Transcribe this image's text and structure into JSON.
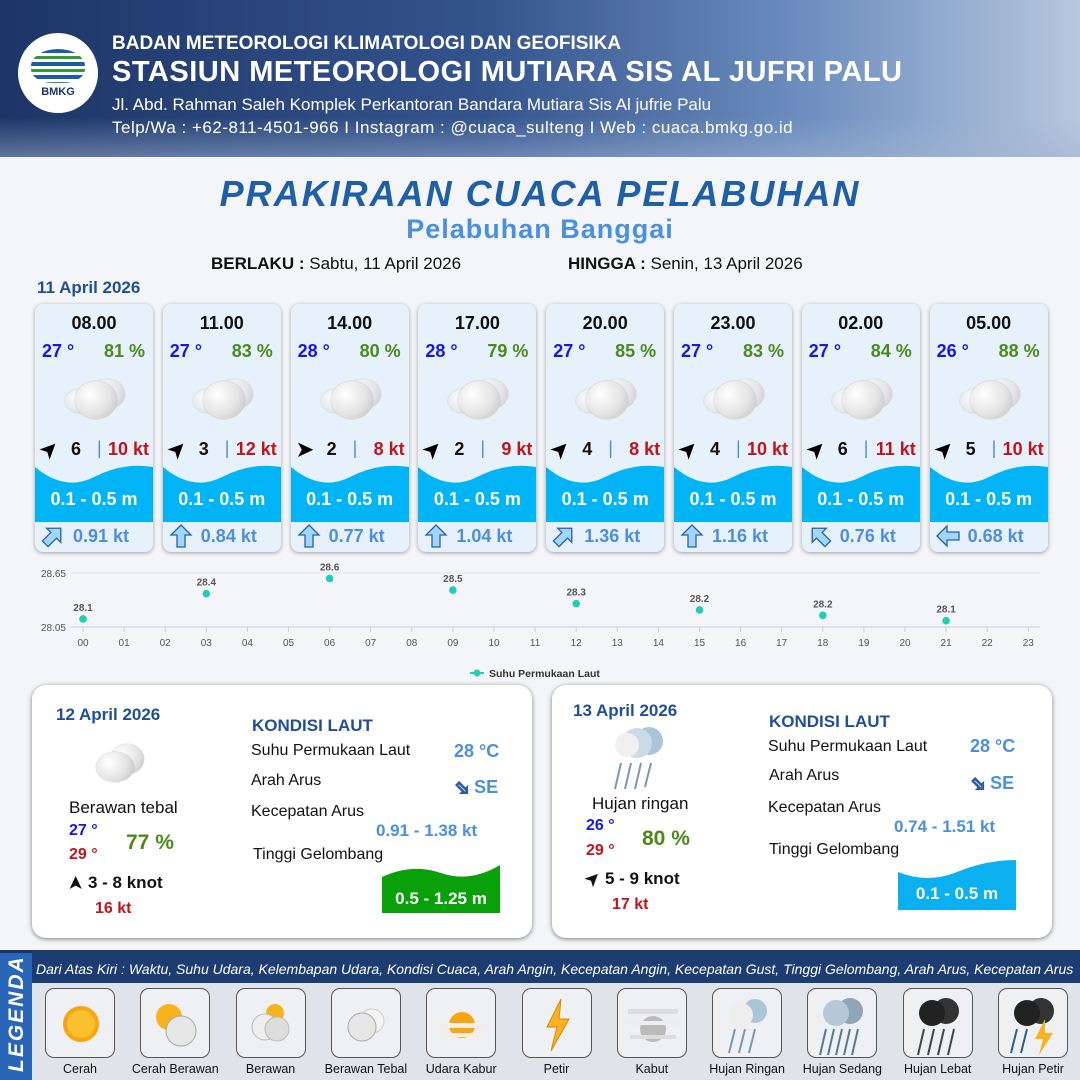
{
  "header": {
    "org": "BADAN METEOROLOGI KLIMATOLOGI DAN GEOFISIKA",
    "station": "STASIUN METEOROLOGI MUTIARA SIS AL JUFRI PALU",
    "address": "Jl. Abd. Rahman Saleh Komplek Perkantoran Bandara Mutiara Sis Al jufrie Palu",
    "contact": "Telp/Wa : +62-811-4501-966  I  Instagram : @cuaca_sulteng  I  Web : cuaca.bmkg.go.id",
    "logo_text": "BMKG"
  },
  "title": "PRAKIRAAN CUACA PELABUHAN",
  "subtitle": "Pelabuhan Banggai",
  "validity": {
    "from_label": "BERLAKU :",
    "from": "Sabtu, 11 April 2026",
    "to_label": "HINGGA :",
    "to": "Senin, 13 April 2026"
  },
  "day1": {
    "date": "11 April 2026",
    "cards": [
      {
        "time": "08.00",
        "temp": "27 °",
        "hum": "81 %",
        "cond": "Berawan Tebal",
        "wind_dir": "NE",
        "wind_rot": -45,
        "wind": "6",
        "gust": "10 kt",
        "wave": "0.1 - 0.5 m",
        "cur_rot": 45,
        "cur": "0.91 kt"
      },
      {
        "time": "11.00",
        "temp": "27 °",
        "hum": "83 %",
        "cond": "Berawan Tebal",
        "wind_dir": "NE",
        "wind_rot": -45,
        "wind": "3",
        "gust": "12 kt",
        "wave": "0.1 - 0.5 m",
        "cur_rot": 0,
        "cur": "0.84 kt"
      },
      {
        "time": "14.00",
        "temp": "28 °",
        "hum": "80 %",
        "cond": "Berawan Tebal",
        "wind_dir": "E",
        "wind_rot": 0,
        "wind": "2",
        "gust": "8 kt",
        "wave": "0.1 - 0.5 m",
        "cur_rot": 0,
        "cur": "0.77 kt"
      },
      {
        "time": "17.00",
        "temp": "28 °",
        "hum": "79 %",
        "cond": "Berawan Tebal",
        "wind_dir": "NE",
        "wind_rot": -45,
        "wind": "2",
        "gust": "9 kt",
        "wave": "0.1 - 0.5 m",
        "cur_rot": 0,
        "cur": "1.04 kt"
      },
      {
        "time": "20.00",
        "temp": "27 °",
        "hum": "85 %",
        "cond": "Berawan Tebal",
        "wind_dir": "NE",
        "wind_rot": -45,
        "wind": "4",
        "gust": "8 kt",
        "wave": "0.1 - 0.5 m",
        "cur_rot": 45,
        "cur": "1.36 kt"
      },
      {
        "time": "23.00",
        "temp": "27 °",
        "hum": "83 %",
        "cond": "Berawan Tebal",
        "wind_dir": "NE",
        "wind_rot": -45,
        "wind": "4",
        "gust": "10 kt",
        "wave": "0.1 - 0.5 m",
        "cur_rot": 0,
        "cur": "1.16 kt"
      },
      {
        "time": "02.00",
        "temp": "27 °",
        "hum": "84 %",
        "cond": "Berawan Tebal",
        "wind_dir": "NE",
        "wind_rot": -45,
        "wind": "6",
        "gust": "11 kt",
        "wave": "0.1 - 0.5 m",
        "cur_rot": -45,
        "cur": "0.76 kt"
      },
      {
        "time": "05.00",
        "temp": "26 °",
        "hum": "88 %",
        "cond": "Berawan Tebal",
        "wind_dir": "NE",
        "wind_rot": -45,
        "wind": "5",
        "gust": "10 kt",
        "wave": "0.1 - 0.5 m",
        "cur_rot": -90,
        "cur": "0.68 kt"
      }
    ]
  },
  "chart_data": {
    "type": "scatter",
    "x_ticks": [
      "00",
      "01",
      "02",
      "03",
      "04",
      "05",
      "06",
      "07",
      "08",
      "09",
      "10",
      "11",
      "12",
      "13",
      "14",
      "15",
      "16",
      "17",
      "18",
      "19",
      "20",
      "21",
      "22",
      "23"
    ],
    "y_ticks": [
      "28.05",
      "28.65"
    ],
    "ylim": [
      28.05,
      28.65
    ],
    "series": [
      {
        "name": "Suhu Permukaan Laut",
        "color": "#1ccfb5",
        "x": [
          "00",
          "03",
          "06",
          "09",
          "12",
          "15",
          "18",
          "21"
        ],
        "values": [
          28.14,
          28.42,
          28.59,
          28.46,
          28.31,
          28.24,
          28.18,
          28.12
        ],
        "labels": [
          "28.1",
          "28.4",
          "28.6",
          "28.5",
          "28.3",
          "28.2",
          "28.2",
          "28.1"
        ]
      }
    ],
    "legend": "bottom",
    "grid": "horizontal"
  },
  "day2": {
    "date": "12 April 2026",
    "cond": "Berawan tebal",
    "temp_min": "27 °",
    "temp_max": "29 °",
    "hum": "77 %",
    "wind": "3  - 8 knot",
    "gust": "16 kt",
    "sea_title": "KONDISI LAUT",
    "sst_label": "Suhu Permukaan Laut",
    "sst": "28 °C",
    "dir_label": "Arah Arus",
    "dir": "SE",
    "speed_label": "Kecepatan Arus",
    "speed": "0.91  - 1.38 kt",
    "wave_label": "Tinggi Gelombang",
    "wave": "0.5 - 1.25 m",
    "wave_color": "#0aa00a"
  },
  "day3": {
    "date": "13 April 2026",
    "cond": "Hujan ringan",
    "temp_min": "26 °",
    "temp_max": "29 °",
    "hum": "80 %",
    "wind": "5  - 9 knot",
    "gust": "17 kt",
    "sea_title": "KONDISI LAUT",
    "sst_label": "Suhu Permukaan Laut",
    "sst": "28 °C",
    "dir_label": "Arah Arus",
    "dir": "SE",
    "speed_label": "Kecepatan Arus",
    "speed": "0.74  - 1.51 kt",
    "wave_label": "Tinggi Gelombang",
    "wave": "0.1 - 0.5 m",
    "wave_color": "#0bb0f0"
  },
  "legend": {
    "title": "LEGENDA",
    "caption": "Dari Atas Kiri : Waktu, Suhu Udara, Kelembapan Udara, Kondisi Cuaca, Arah Angin, Kecepatan Angin, Kecepatan Gust, Tinggi Gelombang, Arah Arus, Kecepatan Arus",
    "items": [
      "Cerah",
      "Cerah Berawan",
      "Berawan",
      "Berawan Tebal",
      "Udara Kabur",
      "Petir",
      "Kabut",
      "Hujan Ringan",
      "Hujan Sedang",
      "Hujan Lebat",
      "Hujan Petir"
    ]
  },
  "colors": {
    "title": "#1f5fa8",
    "temp": "#1515f0",
    "humidity": "#4b8a1a",
    "gust": "#c0141c",
    "wave": "#00b4f5",
    "current": "#4a8fe0"
  }
}
